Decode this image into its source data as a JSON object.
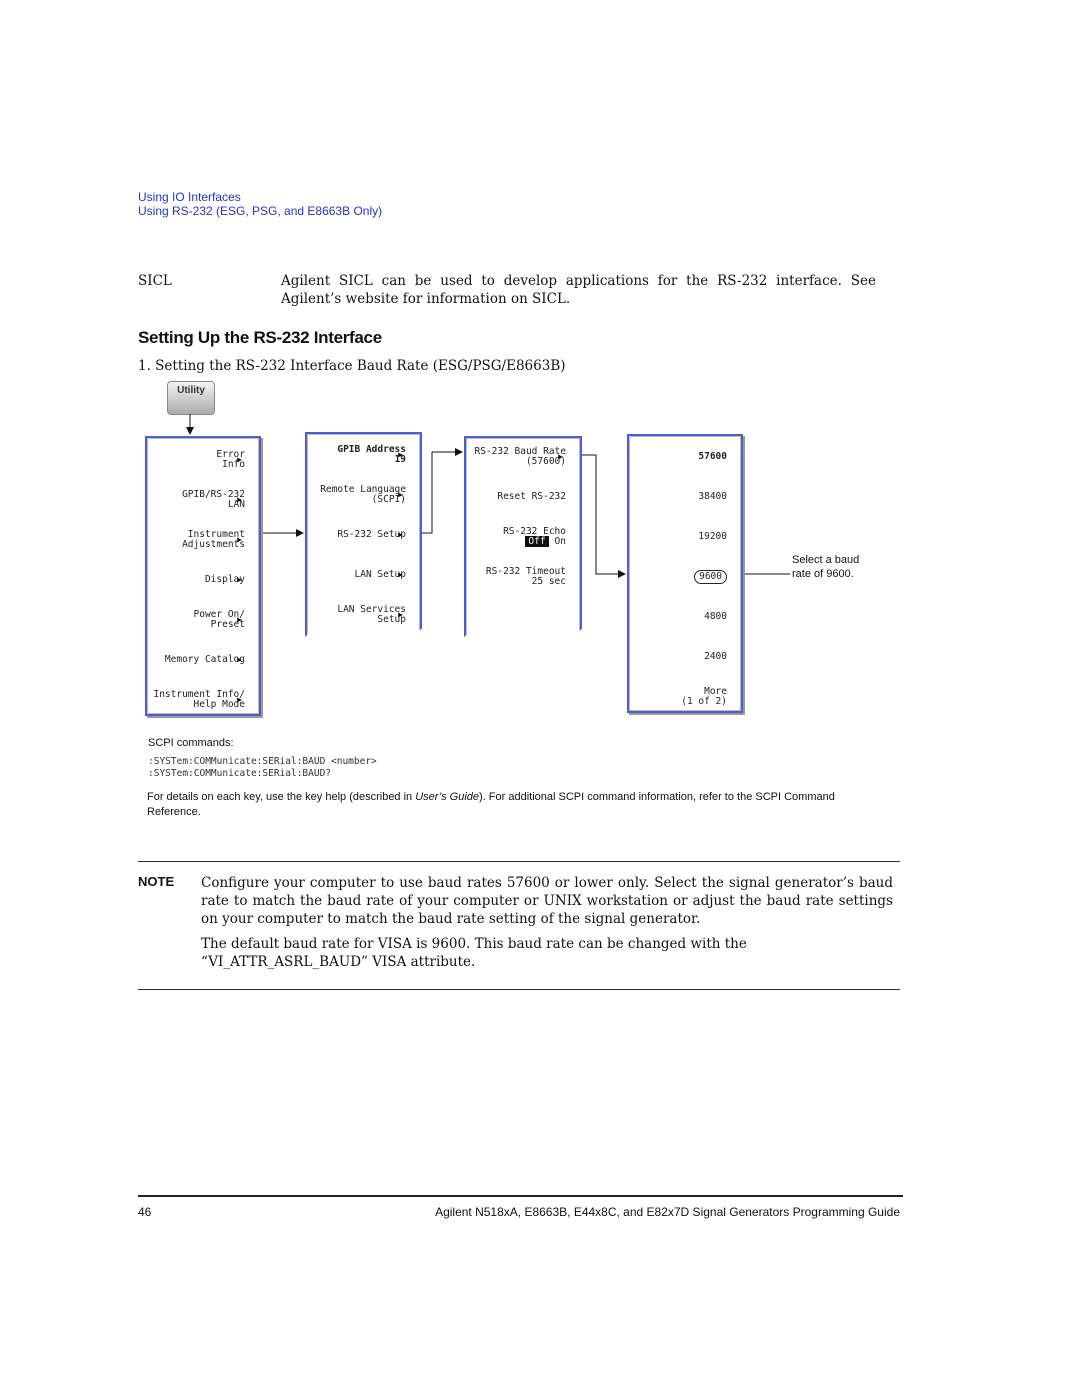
{
  "header": {
    "breadcrumb": [
      "Using IO Interfaces",
      "Using RS-232 (ESG, PSG, and E8663B Only)"
    ]
  },
  "definition": {
    "term": "SICL",
    "text": "Agilent SICL can be used to develop applications for the RS-232 interface. See Agilent’s website for information on SICL."
  },
  "section": {
    "heading": "Setting Up the RS-232 Interface",
    "figure_caption": "1. Setting the RS-232 Interface Baud Rate (ESG/PSG/E8663B)"
  },
  "figure": {
    "hardkey": "Utility",
    "menus": [
      {
        "keys": [
          [
            "Error",
            "Info"
          ],
          [
            "GPIB/RS-232",
            "LAN"
          ],
          [
            "Instrument",
            "Adjustments"
          ],
          [
            "Display"
          ],
          [
            "Power On/",
            "Preset"
          ],
          [
            "Memory Catalog"
          ],
          [
            "Instrument Info/",
            "Help Mode"
          ]
        ]
      },
      {
        "keys": [
          [
            "GPIB Address",
            "19"
          ],
          [
            "Remote Language",
            "(SCPI)"
          ],
          [
            "RS-232 Setup"
          ],
          [
            "LAN Setup"
          ],
          [
            "LAN Services",
            "Setup"
          ]
        ]
      },
      {
        "keys": [
          [
            "RS-232 Baud Rate",
            "(57600)"
          ],
          [
            "Reset RS-232"
          ],
          [
            "RS-232 Echo",
            "Off",
            "On"
          ],
          [
            "RS-232 Timeout",
            "25 sec"
          ]
        ]
      },
      {
        "keys": [
          [
            "57600"
          ],
          [
            "38400"
          ],
          [
            "19200"
          ],
          [
            "9600"
          ],
          [
            "4800"
          ],
          [
            "2400"
          ],
          [
            "More",
            "(1 of 2)"
          ]
        ]
      }
    ],
    "callout": [
      "Select a baud",
      "rate of 9600."
    ],
    "scpi_label": "SCPI commands:",
    "scpi_commands": [
      ":SYSTem:COMMunicate:SERial:BAUD <number>",
      ":SYSTem:COMMunicate:SERial:BAUD?"
    ],
    "details": [
      "For details on each key, use the key help (described in ",
      "User’s Guide",
      "). For additional SCPI command information, refer to the SCPI Command Reference."
    ]
  },
  "note": {
    "label": "NOTE",
    "paragraphs": [
      "Configure your computer to use baud rates 57600 or lower only. Select the signal generator’s baud rate to match the baud rate of your computer or UNIX workstation or adjust the baud rate settings on your computer to match the baud rate setting of the signal generator.",
      "The default baud rate for VISA is 9600. This baud rate can be changed with the “VI_ATTR_ASRL_BAUD” VISA attribute."
    ]
  },
  "footer": {
    "page": "46",
    "title": "Agilent N518xA, E8663B, E44x8C, and E82x7D Signal Generators Programming Guide"
  }
}
